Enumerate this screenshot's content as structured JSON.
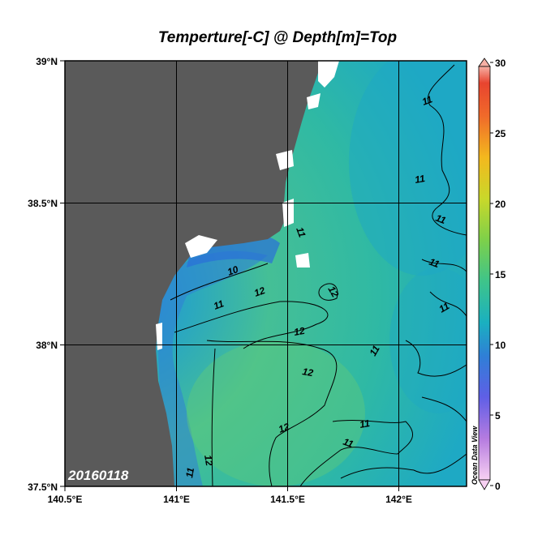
{
  "title": "Temperture[-C] @ Depth[m]=Top",
  "date_label": "20160118",
  "watermark": "Ocean Data View",
  "colors": {
    "land": "#5a5a5a",
    "coast_missing": "#ffffff",
    "ocean_warm": "#4fbf8a",
    "ocean_mid": "#20b4a8",
    "ocean_cold": "#2f7fd6",
    "contour": "#000000"
  },
  "x_axis": {
    "ticks": [
      "140.5°E",
      "141°E",
      "141.5°E",
      "142°E"
    ]
  },
  "y_axis": {
    "ticks": [
      "39°N",
      "38.5°N",
      "38°N",
      "37.5°N"
    ]
  },
  "colorbar": {
    "ticks": [
      "30",
      "25",
      "20",
      "15",
      "10",
      "5",
      "0"
    ]
  },
  "contour_labels": [
    "10",
    "11",
    "11",
    "11",
    "11",
    "11",
    "11",
    "11",
    "11",
    "11",
    "11",
    "11",
    "12",
    "12",
    "12",
    "12",
    "12",
    "12"
  ]
}
